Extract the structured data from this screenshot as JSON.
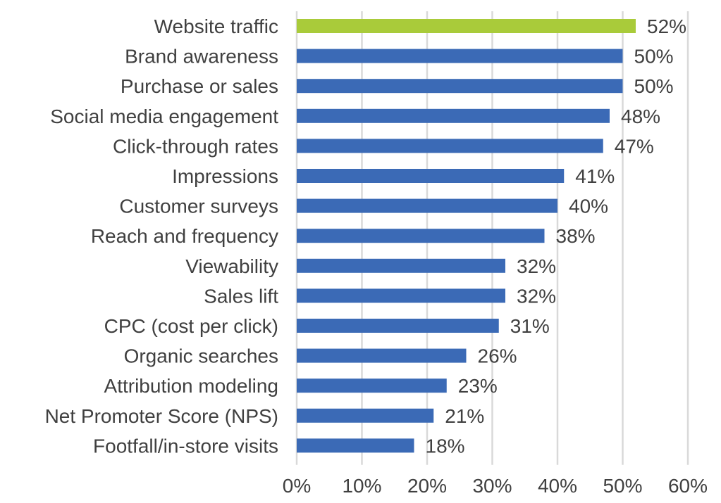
{
  "chart_data": {
    "type": "bar",
    "orientation": "horizontal",
    "categories": [
      "Website traffic",
      "Brand awareness",
      "Purchase or sales",
      "Social media engagement",
      "Click-through rates",
      "Impressions",
      "Customer surveys",
      "Reach and frequency",
      "Viewability",
      "Sales lift",
      "CPC (cost per click)",
      "Organic searches",
      "Attribution modeling",
      "Net Promoter Score (NPS)",
      "Footfall/in-store visits"
    ],
    "values": [
      52,
      50,
      50,
      48,
      47,
      41,
      40,
      38,
      32,
      32,
      31,
      26,
      23,
      21,
      18
    ],
    "value_labels": [
      "52%",
      "50%",
      "50%",
      "48%",
      "47%",
      "41%",
      "40%",
      "38%",
      "32%",
      "32%",
      "31%",
      "26%",
      "23%",
      "21%",
      "18%"
    ],
    "title": "",
    "xlabel": "",
    "ylabel": "",
    "xlim": [
      0,
      60
    ],
    "xticks": [
      0,
      10,
      20,
      30,
      40,
      50,
      60
    ],
    "xtick_labels": [
      "0%",
      "10%",
      "20%",
      "30%",
      "40%",
      "50%",
      "60%"
    ],
    "grid": "vertical",
    "legend": "none",
    "colors": {
      "highlight": "#A9CB3A",
      "bar": "#3B6AB6",
      "grid": "#D9D9D9",
      "text": "#404040"
    },
    "highlight_index": 0
  }
}
